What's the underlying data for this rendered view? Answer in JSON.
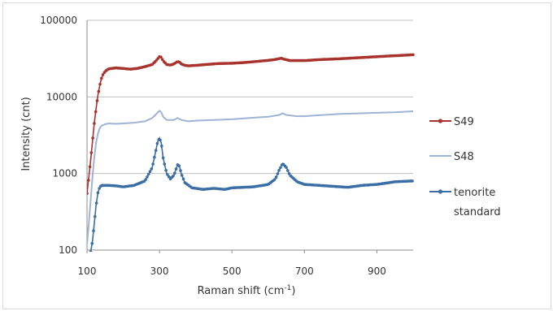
{
  "chart_data": {
    "type": "line",
    "title": "",
    "xlabel": "Raman shift (cm⁻¹)",
    "ylabel": "Intensity (cnt)",
    "xlim": [
      100,
      1000
    ],
    "ylim": [
      100,
      100000
    ],
    "yscale": "log",
    "x_ticks": [
      100,
      300,
      500,
      700,
      900
    ],
    "y_ticks": [
      100,
      1000,
      10000,
      100000
    ],
    "x_tick_labels": [
      "100",
      "300",
      "500",
      "700",
      "900"
    ],
    "y_tick_labels": [
      "100",
      "1000",
      "10000",
      "100000"
    ],
    "grid": "horizontal major gridlines",
    "legend_position": "right",
    "series": [
      {
        "name": "S49",
        "color": "#a8322d",
        "marker": "circle",
        "points": [
          [
            100,
            550
          ],
          [
            105,
            900
          ],
          [
            110,
            1500
          ],
          [
            115,
            2600
          ],
          [
            120,
            4500
          ],
          [
            125,
            7000
          ],
          [
            130,
            10500
          ],
          [
            135,
            14000
          ],
          [
            140,
            17500
          ],
          [
            145,
            20000
          ],
          [
            150,
            21500
          ],
          [
            155,
            22500
          ],
          [
            160,
            23200
          ],
          [
            170,
            23600
          ],
          [
            180,
            23900
          ],
          [
            200,
            23500
          ],
          [
            220,
            23000
          ],
          [
            240,
            23600
          ],
          [
            260,
            24800
          ],
          [
            280,
            26500
          ],
          [
            290,
            29500
          ],
          [
            300,
            33500
          ],
          [
            305,
            33000
          ],
          [
            310,
            29500
          ],
          [
            320,
            26500
          ],
          [
            330,
            26000
          ],
          [
            340,
            27000
          ],
          [
            350,
            29000
          ],
          [
            355,
            28500
          ],
          [
            360,
            27000
          ],
          [
            370,
            25800
          ],
          [
            380,
            25500
          ],
          [
            400,
            25800
          ],
          [
            430,
            26500
          ],
          [
            460,
            27200
          ],
          [
            500,
            27500
          ],
          [
            530,
            28000
          ],
          [
            560,
            28800
          ],
          [
            600,
            30000
          ],
          [
            620,
            30800
          ],
          [
            635,
            32000
          ],
          [
            645,
            31000
          ],
          [
            660,
            29800
          ],
          [
            700,
            29800
          ],
          [
            750,
            30800
          ],
          [
            800,
            31500
          ],
          [
            850,
            32500
          ],
          [
            900,
            33500
          ],
          [
            950,
            34500
          ],
          [
            1000,
            35500
          ]
        ]
      },
      {
        "name": "S48",
        "color": "#9eb3d5",
        "marker": "none",
        "points": [
          [
            100,
            120
          ],
          [
            105,
            220
          ],
          [
            110,
            450
          ],
          [
            115,
            900
          ],
          [
            120,
            1600
          ],
          [
            125,
            2500
          ],
          [
            130,
            3300
          ],
          [
            135,
            3900
          ],
          [
            140,
            4200
          ],
          [
            150,
            4400
          ],
          [
            160,
            4500
          ],
          [
            180,
            4450
          ],
          [
            200,
            4500
          ],
          [
            230,
            4600
          ],
          [
            260,
            4800
          ],
          [
            280,
            5300
          ],
          [
            290,
            5900
          ],
          [
            300,
            6600
          ],
          [
            305,
            6300
          ],
          [
            310,
            5500
          ],
          [
            320,
            5000
          ],
          [
            340,
            5000
          ],
          [
            350,
            5300
          ],
          [
            360,
            5000
          ],
          [
            380,
            4800
          ],
          [
            400,
            4900
          ],
          [
            450,
            5000
          ],
          [
            500,
            5100
          ],
          [
            550,
            5300
          ],
          [
            600,
            5500
          ],
          [
            630,
            5800
          ],
          [
            640,
            6100
          ],
          [
            650,
            5800
          ],
          [
            680,
            5600
          ],
          [
            700,
            5600
          ],
          [
            750,
            5800
          ],
          [
            800,
            6000
          ],
          [
            850,
            6100
          ],
          [
            900,
            6200
          ],
          [
            950,
            6300
          ],
          [
            1000,
            6500
          ]
        ]
      },
      {
        "name": "tenorite standard",
        "color": "#3a6ea5",
        "marker": "circle",
        "points": [
          [
            110,
            95
          ],
          [
            115,
            130
          ],
          [
            120,
            220
          ],
          [
            125,
            380
          ],
          [
            130,
            560
          ],
          [
            135,
            660
          ],
          [
            140,
            700
          ],
          [
            160,
            700
          ],
          [
            180,
            690
          ],
          [
            200,
            670
          ],
          [
            230,
            700
          ],
          [
            260,
            800
          ],
          [
            280,
            1200
          ],
          [
            290,
            2000
          ],
          [
            295,
            2600
          ],
          [
            300,
            2900
          ],
          [
            305,
            2500
          ],
          [
            310,
            1600
          ],
          [
            320,
            1000
          ],
          [
            330,
            850
          ],
          [
            340,
            950
          ],
          [
            350,
            1300
          ],
          [
            355,
            1250
          ],
          [
            360,
            1000
          ],
          [
            370,
            760
          ],
          [
            390,
            650
          ],
          [
            420,
            620
          ],
          [
            450,
            640
          ],
          [
            480,
            620
          ],
          [
            500,
            650
          ],
          [
            530,
            660
          ],
          [
            560,
            670
          ],
          [
            600,
            720
          ],
          [
            620,
            850
          ],
          [
            630,
            1100
          ],
          [
            640,
            1350
          ],
          [
            650,
            1200
          ],
          [
            660,
            950
          ],
          [
            680,
            780
          ],
          [
            700,
            720
          ],
          [
            740,
            700
          ],
          [
            780,
            680
          ],
          [
            820,
            660
          ],
          [
            860,
            700
          ],
          [
            900,
            720
          ],
          [
            950,
            780
          ],
          [
            1000,
            800
          ]
        ]
      }
    ]
  }
}
